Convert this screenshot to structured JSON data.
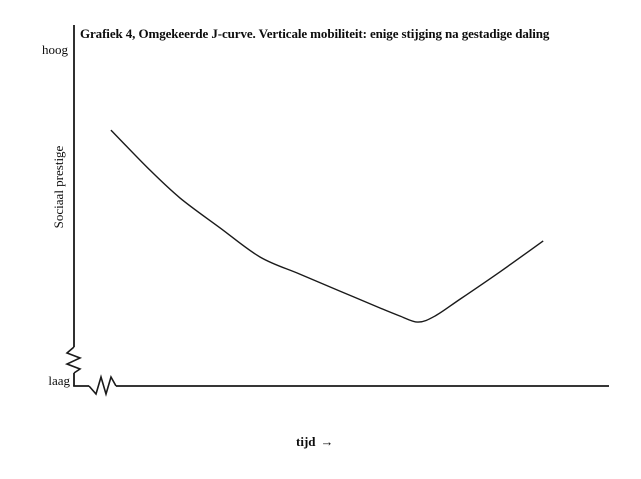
{
  "title": "Grafiek 4, Omgekeerde J-curve. Verticale mobiliteit: enige stijging na gestadige daling",
  "y_axis": {
    "label": "Sociaal prestige",
    "top_tick_label": "hoog",
    "bottom_tick_label": "laag"
  },
  "x_axis": {
    "label": "tijd",
    "arrow": "→"
  },
  "line_color": "#1a1a1a",
  "chart_data": {
    "type": "line",
    "title": "Grafiek 4, Omgekeerde J-curve. Verticale mobiliteit: enige stijging na gestadige daling",
    "xlabel": "tijd",
    "ylabel": "Sociaal prestige",
    "y_range_labels": [
      "laag",
      "hoog"
    ],
    "axis_breaks": [
      "y-axis near origin",
      "x-axis near origin"
    ],
    "grid": false,
    "legend": false,
    "description": "Omgekeerde J-curve: gestadige daling van sociaal prestige in de tijd, gevolgd door enige stijging",
    "x_range": [
      0,
      1
    ],
    "y_range": [
      0,
      1
    ],
    "points": [
      [
        0.069,
        0.709
      ],
      [
        0.138,
        0.604
      ],
      [
        0.198,
        0.521
      ],
      [
        0.273,
        0.438
      ],
      [
        0.348,
        0.357
      ],
      [
        0.422,
        0.31
      ],
      [
        0.497,
        0.263
      ],
      [
        0.572,
        0.216
      ],
      [
        0.609,
        0.194
      ],
      [
        0.643,
        0.177
      ],
      [
        0.675,
        0.194
      ],
      [
        0.722,
        0.241
      ],
      [
        0.796,
        0.316
      ],
      [
        0.877,
        0.402
      ]
    ]
  }
}
